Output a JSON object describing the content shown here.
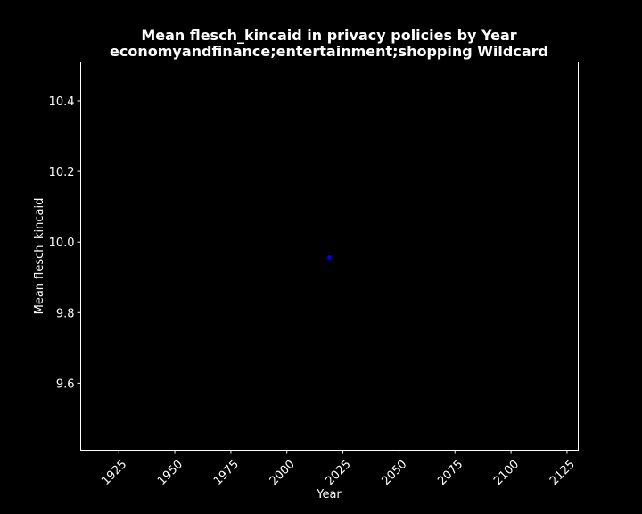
{
  "chart_data": {
    "type": "scatter",
    "title": "Mean flesch_kincaid in privacy policies by Year",
    "subtitle": "economyandfinance;entertainment;shopping Wildcard",
    "xlabel": "Year",
    "ylabel": "Mean flesch_kincaid",
    "xlim": [
      1908,
      2130
    ],
    "ylim": [
      9.41,
      10.51
    ],
    "x_ticks": [
      1925,
      1950,
      1975,
      2000,
      2025,
      2050,
      2075,
      2100,
      2125
    ],
    "y_ticks": [
      9.6,
      9.8,
      10.0,
      10.2,
      10.4
    ],
    "y_tick_labels": [
      "9.6",
      "9.8",
      "10.0",
      "10.2",
      "10.4"
    ],
    "grid": false,
    "series": [
      {
        "x": [
          2019
        ],
        "y": [
          9.956
        ],
        "color": "#0000ff"
      }
    ],
    "colors": {
      "background": "#000000",
      "axes": "#ffffff",
      "text": "#ffffff",
      "marker": "#0000ff"
    }
  }
}
